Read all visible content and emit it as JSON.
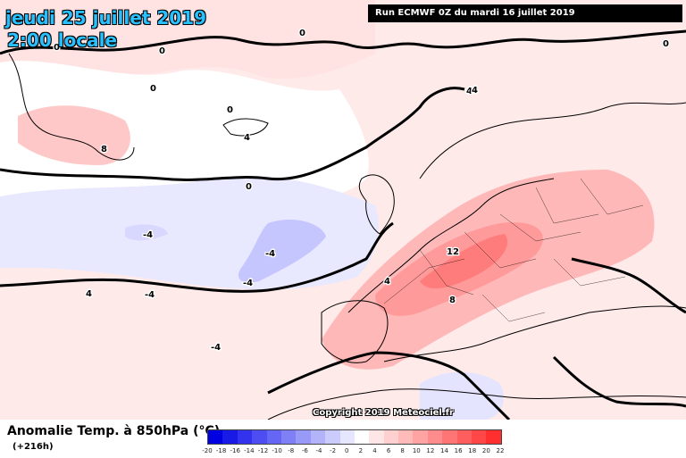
{
  "header": {
    "date": "jeudi 25 juillet 2019",
    "time": "2:00 locale",
    "run": "Run ECMWF 0Z du mardi 16 juillet 2019"
  },
  "map": {
    "copyright": "Copyright 2019 Meteociel.fr",
    "contour_labels": [
      "0",
      "0",
      "0",
      "0",
      "0",
      "0",
      "0",
      "4",
      "4",
      "4",
      "4",
      "4",
      "8",
      "8",
      "12",
      "-4",
      "-4",
      "-4",
      "-4",
      "-4"
    ]
  },
  "legend": {
    "title": "Anomalie Temp. à 850hPa (°C)",
    "subtitle": "(+216h)",
    "ticks": [
      "-20",
      "-18",
      "-16",
      "-14",
      "-12",
      "-10",
      "-8",
      "-6",
      "-4",
      "-2",
      "0",
      "2",
      "4",
      "6",
      "8",
      "10",
      "12",
      "14",
      "16",
      "18",
      "20",
      "22"
    ],
    "colors": [
      "#0000e0",
      "#1a1ae6",
      "#3333ee",
      "#4d4df2",
      "#6666f4",
      "#8080f6",
      "#9999f8",
      "#b3b3fa",
      "#ccccfc",
      "#e6e6ff",
      "#ffffff",
      "#ffe6e6",
      "#ffd0d0",
      "#ffbaba",
      "#ffa3a3",
      "#ff8c8c",
      "#ff7575",
      "#ff5e5e",
      "#ff4747",
      "#ff2f2f"
    ]
  }
}
